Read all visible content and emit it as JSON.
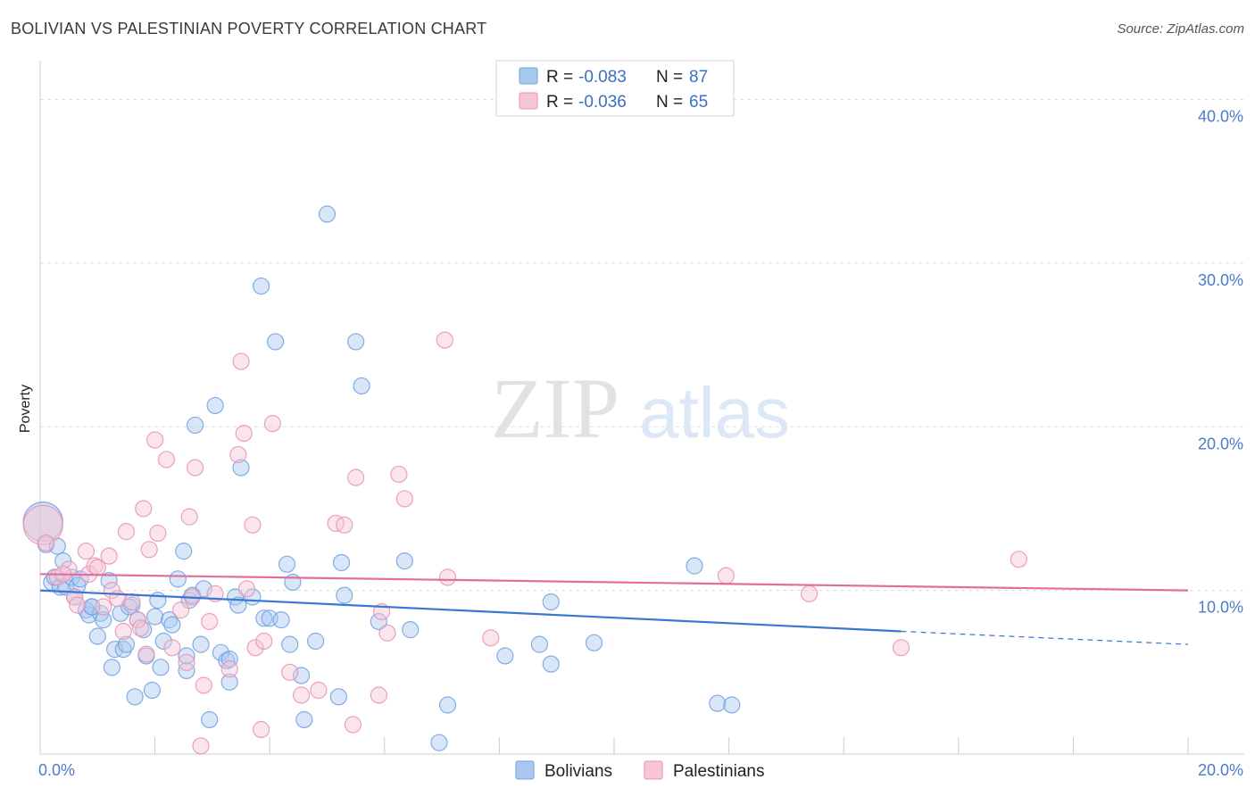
{
  "header": {
    "title": "BOLIVIAN VS PALESTINIAN POVERTY CORRELATION CHART",
    "source": "Source: ZipAtlas.com"
  },
  "watermark": {
    "zip": "ZIP",
    "atlas": "atlas"
  },
  "legend": {
    "rows": [
      {
        "r_label": "R = ",
        "r_value": "-0.083",
        "n_label": "N = ",
        "n_value": "87",
        "color": "#a8c8f0",
        "stroke": "#6fa0e0"
      },
      {
        "r_label": "R = ",
        "r_value": "-0.036",
        "n_label": "N = ",
        "n_value": "65",
        "color": "#f7c6d6",
        "stroke": "#e891b0"
      }
    ]
  },
  "bottom_legend": [
    {
      "label": "Bolivians",
      "color": "#a8c8f0",
      "stroke": "#6fa0e0"
    },
    {
      "label": "Palestinians",
      "color": "#f7c6d6",
      "stroke": "#e891b0"
    }
  ],
  "chart_data": {
    "type": "scatter",
    "ylabel": "Poverty",
    "xlim": [
      0,
      20
    ],
    "ylim": [
      0,
      40
    ],
    "x_tick_labels": [
      "0.0%",
      "20.0%"
    ],
    "y_ticks": [
      10,
      20,
      30,
      40
    ],
    "y_tick_labels": [
      "10.0%",
      "20.0%",
      "30.0%",
      "40.0%"
    ],
    "grid": true,
    "legend_position": "top-center",
    "series": [
      {
        "name": "Bolivians",
        "color": "#6fa0e0",
        "fill": "#a8c8f0",
        "trend": {
          "x0": 0,
          "y0": 10.0,
          "x1": 15,
          "y1": 7.5,
          "dash_to_x": 20,
          "dash_to_y": 6.7,
          "color": "#3a78d0"
        },
        "points": [
          [
            0.05,
            14.2,
            "big"
          ],
          [
            0.1,
            12.8
          ],
          [
            0.2,
            10.5
          ],
          [
            0.25,
            10.8
          ],
          [
            0.3,
            12.7
          ],
          [
            0.35,
            10.2
          ],
          [
            0.4,
            11.8
          ],
          [
            0.45,
            10.2
          ],
          [
            0.55,
            10.8
          ],
          [
            0.6,
            9.6
          ],
          [
            0.65,
            10.3
          ],
          [
            0.7,
            10.7
          ],
          [
            0.8,
            8.8
          ],
          [
            0.85,
            8.5
          ],
          [
            0.9,
            9.0
          ],
          [
            1.0,
            7.2
          ],
          [
            1.05,
            8.6
          ],
          [
            1.1,
            8.2
          ],
          [
            1.2,
            10.6
          ],
          [
            1.25,
            5.3
          ],
          [
            1.3,
            6.4
          ],
          [
            1.4,
            8.6
          ],
          [
            1.45,
            6.4
          ],
          [
            1.5,
            6.7
          ],
          [
            1.6,
            9.1
          ],
          [
            1.65,
            3.5
          ],
          [
            1.7,
            8.2
          ],
          [
            1.8,
            7.6
          ],
          [
            1.85,
            6.0
          ],
          [
            1.95,
            3.9
          ],
          [
            2.0,
            8.4
          ],
          [
            2.05,
            9.4
          ],
          [
            2.1,
            5.3
          ],
          [
            2.15,
            6.9
          ],
          [
            2.25,
            8.2
          ],
          [
            2.3,
            7.9
          ],
          [
            2.4,
            10.7
          ],
          [
            2.5,
            12.4
          ],
          [
            2.55,
            5.1
          ],
          [
            2.6,
            9.4
          ],
          [
            2.65,
            9.7
          ],
          [
            2.7,
            20.1
          ],
          [
            2.8,
            6.7
          ],
          [
            2.85,
            10.1
          ],
          [
            2.95,
            2.1
          ],
          [
            3.05,
            21.3
          ],
          [
            3.15,
            6.2
          ],
          [
            3.25,
            5.7
          ],
          [
            3.3,
            4.4
          ],
          [
            3.4,
            9.6
          ],
          [
            3.45,
            9.1
          ],
          [
            3.5,
            17.5
          ],
          [
            3.7,
            9.6
          ],
          [
            3.85,
            28.6
          ],
          [
            3.9,
            8.3
          ],
          [
            4.0,
            8.3
          ],
          [
            4.1,
            25.2
          ],
          [
            4.3,
            11.6
          ],
          [
            4.35,
            6.7
          ],
          [
            4.4,
            10.5
          ],
          [
            4.55,
            4.8
          ],
          [
            4.6,
            2.1
          ],
          [
            4.8,
            6.9
          ],
          [
            5.0,
            33.0
          ],
          [
            5.2,
            3.5
          ],
          [
            5.25,
            11.7
          ],
          [
            5.3,
            9.7
          ],
          [
            5.5,
            25.2
          ],
          [
            5.6,
            22.5
          ],
          [
            5.9,
            8.1
          ],
          [
            6.35,
            11.8
          ],
          [
            6.45,
            7.6
          ],
          [
            7.1,
            3.0
          ],
          [
            6.95,
            0.7
          ],
          [
            8.1,
            6.0
          ],
          [
            8.7,
            6.7
          ],
          [
            8.9,
            9.3
          ],
          [
            8.9,
            5.5
          ],
          [
            9.65,
            6.8
          ],
          [
            11.4,
            11.5
          ],
          [
            11.8,
            3.1
          ],
          [
            12.05,
            3.0
          ],
          [
            0.9,
            9.0
          ],
          [
            2.55,
            6.0
          ],
          [
            3.3,
            5.8
          ],
          [
            4.2,
            8.2
          ],
          [
            1.55,
            9.0
          ]
        ]
      },
      {
        "name": "Palestinians",
        "color": "#e891b0",
        "fill": "#f7c6d6",
        "trend": {
          "x0": 0,
          "y0": 11.0,
          "x1": 20,
          "y1": 10.0,
          "color": "#e0709a"
        },
        "points": [
          [
            0.05,
            14.0,
            "big"
          ],
          [
            0.1,
            12.9
          ],
          [
            0.3,
            10.8
          ],
          [
            0.5,
            11.3
          ],
          [
            0.6,
            9.6
          ],
          [
            0.65,
            9.1
          ],
          [
            0.8,
            12.4
          ],
          [
            0.85,
            11.0
          ],
          [
            0.95,
            11.5
          ],
          [
            1.0,
            11.4
          ],
          [
            1.1,
            9.0
          ],
          [
            1.2,
            12.1
          ],
          [
            1.25,
            10.0
          ],
          [
            1.35,
            9.5
          ],
          [
            1.45,
            7.5
          ],
          [
            1.5,
            13.6
          ],
          [
            1.6,
            9.3
          ],
          [
            1.7,
            8.2
          ],
          [
            1.75,
            7.7
          ],
          [
            1.8,
            15.0
          ],
          [
            1.85,
            6.1
          ],
          [
            1.9,
            12.5
          ],
          [
            2.0,
            19.2
          ],
          [
            2.05,
            13.5
          ],
          [
            2.2,
            18.0
          ],
          [
            2.3,
            6.5
          ],
          [
            2.45,
            8.8
          ],
          [
            2.55,
            5.6
          ],
          [
            2.6,
            14.5
          ],
          [
            2.65,
            9.6
          ],
          [
            2.7,
            17.5
          ],
          [
            2.8,
            0.5
          ],
          [
            2.85,
            4.2
          ],
          [
            2.95,
            8.1
          ],
          [
            3.05,
            9.8
          ],
          [
            3.3,
            5.2
          ],
          [
            3.45,
            18.3
          ],
          [
            3.55,
            19.6
          ],
          [
            3.6,
            10.1
          ],
          [
            3.5,
            24.0
          ],
          [
            3.7,
            14.0
          ],
          [
            3.75,
            6.5
          ],
          [
            3.85,
            1.5
          ],
          [
            3.9,
            6.9
          ],
          [
            4.05,
            20.2
          ],
          [
            4.35,
            5.0
          ],
          [
            4.55,
            3.6
          ],
          [
            4.85,
            3.9
          ],
          [
            5.15,
            14.1
          ],
          [
            5.3,
            14.0
          ],
          [
            5.45,
            1.8
          ],
          [
            5.5,
            16.9
          ],
          [
            5.9,
            3.6
          ],
          [
            5.95,
            8.7
          ],
          [
            6.05,
            7.4
          ],
          [
            6.25,
            17.1
          ],
          [
            6.35,
            15.6
          ],
          [
            7.05,
            25.3
          ],
          [
            7.1,
            10.8
          ],
          [
            7.85,
            7.1
          ],
          [
            11.95,
            10.9
          ],
          [
            13.4,
            9.8
          ],
          [
            15.0,
            6.5
          ],
          [
            17.05,
            11.9
          ],
          [
            0.4,
            11.0
          ]
        ]
      }
    ]
  }
}
